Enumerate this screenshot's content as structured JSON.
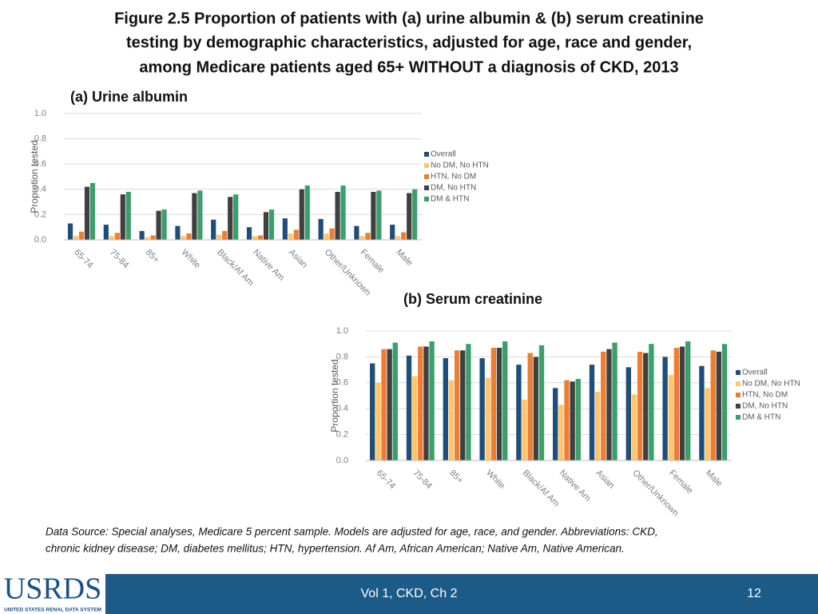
{
  "title": [
    "Figure 2.5 Proportion of patients with (a) urine albumin & (b) serum creatinine",
    "testing by demographic characteristics, adjusted for age, race and gender,",
    "among Medicare patients aged 65+ WITHOUT a diagnosis of CKD, 2013"
  ],
  "chart_data": [
    {
      "type": "bar",
      "title": "(a) Urine albumin",
      "y_label": "Proprotion tested",
      "categories": [
        "65-74",
        "75-84",
        "85+",
        "White",
        "Black/Af Am",
        "Native Am",
        "Asian",
        "Other/Unknown",
        "Female",
        "Male"
      ],
      "series": [
        {
          "name": "Overall",
          "color": "#1f4e79",
          "values": [
            0.13,
            0.12,
            0.07,
            0.11,
            0.16,
            0.1,
            0.17,
            0.165,
            0.11,
            0.12
          ]
        },
        {
          "name": "No DM, No HTN",
          "color": "#ffc66e",
          "values": [
            0.03,
            0.03,
            0.02,
            0.03,
            0.04,
            0.03,
            0.05,
            0.05,
            0.03,
            0.03
          ]
        },
        {
          "name": "HTN, No DM",
          "color": "#ed7d31",
          "values": [
            0.065,
            0.055,
            0.035,
            0.05,
            0.07,
            0.035,
            0.08,
            0.09,
            0.055,
            0.06
          ]
        },
        {
          "name": "DM, No HTN",
          "color": "#404040",
          "values": [
            0.42,
            0.36,
            0.23,
            0.37,
            0.34,
            0.22,
            0.4,
            0.38,
            0.38,
            0.37
          ]
        },
        {
          "name": "DM & HTN",
          "color": "#3a9f6b",
          "values": [
            0.45,
            0.38,
            0.24,
            0.39,
            0.36,
            0.24,
            0.43,
            0.43,
            0.39,
            0.4
          ]
        }
      ],
      "ylim": [
        0,
        1
      ],
      "yticks": [
        {
          "value": 0,
          "label": "0.0"
        },
        0.2,
        0.4,
        0.6,
        0.8,
        {
          "value": 1,
          "label": "1.0"
        }
      ],
      "grid": true,
      "legend": "right"
    },
    {
      "type": "bar",
      "title": "(b) Serum creatinine",
      "y_label": "Proportion tested",
      "categories": [
        "65-74",
        "75-84",
        "85+",
        "White",
        "Black/Af Am",
        "Native Am",
        "Asian",
        "Other/Unknown",
        "Female",
        "Male"
      ],
      "series": [
        {
          "name": "Overall",
          "color": "#1f4e79",
          "values": [
            0.75,
            0.81,
            0.79,
            0.79,
            0.74,
            0.56,
            0.74,
            0.72,
            0.8,
            0.73
          ]
        },
        {
          "name": "No DM, No HTN",
          "color": "#ffc66e",
          "values": [
            0.6,
            0.65,
            0.62,
            0.64,
            0.47,
            0.43,
            0.53,
            0.51,
            0.66,
            0.56
          ]
        },
        {
          "name": "HTN, No DM",
          "color": "#ed7d31",
          "values": [
            0.86,
            0.88,
            0.85,
            0.87,
            0.83,
            0.62,
            0.84,
            0.84,
            0.87,
            0.85
          ]
        },
        {
          "name": "DM, No HTN",
          "color": "#404040",
          "values": [
            0.86,
            0.88,
            0.85,
            0.87,
            0.8,
            0.61,
            0.86,
            0.83,
            0.88,
            0.84
          ]
        },
        {
          "name": "DM & HTN",
          "color": "#3a9f6b",
          "values": [
            0.91,
            0.92,
            0.9,
            0.92,
            0.89,
            0.63,
            0.91,
            0.9,
            0.92,
            0.9
          ]
        }
      ],
      "ylim": [
        0,
        1
      ],
      "yticks": [
        {
          "value": 0,
          "label": "0.0"
        },
        0.2,
        0.4,
        0.6,
        0.8,
        {
          "value": 1,
          "label": "1.0"
        }
      ],
      "grid": true,
      "legend": "right"
    }
  ],
  "data_source": [
    "Data Source: Special analyses, Medicare 5 percent sample. Models are adjusted for age, race, and gender. Abbreviations: CKD,",
    "chronic kidney disease; DM, diabetes mellitus; HTN, hypertension. Af Am, African American; Native Am, Native American."
  ],
  "footer": {
    "logo": "USRDS",
    "logo_subtitle": "UNITED STATES RENAL DATA SYSTEM",
    "center": "Vol 1, CKD, Ch 2",
    "page": "12"
  }
}
